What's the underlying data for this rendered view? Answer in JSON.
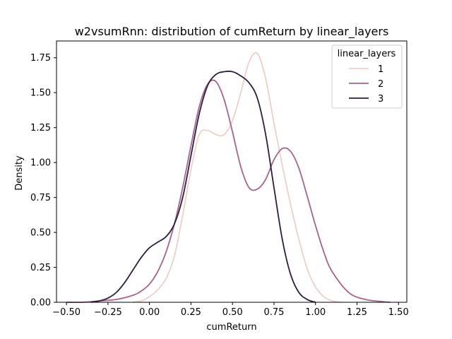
{
  "chart_data": {
    "type": "line",
    "title": "w2vsumRnn: distribution of cumReturn by linear_layers",
    "xlabel": "cumReturn",
    "ylabel": "Density",
    "xlim": [
      -0.56,
      1.55
    ],
    "ylim": [
      0,
      1.87
    ],
    "xticks": [
      "−0.50",
      "−0.25",
      "0.00",
      "0.25",
      "0.50",
      "0.75",
      "1.00",
      "1.25",
      "1.50"
    ],
    "xtick_values": [
      -0.5,
      -0.25,
      0.0,
      0.25,
      0.5,
      0.75,
      1.0,
      1.25,
      1.5
    ],
    "yticks": [
      "0.00",
      "0.25",
      "0.50",
      "0.75",
      "1.00",
      "1.25",
      "1.50",
      "1.75"
    ],
    "ytick_values": [
      0.0,
      0.25,
      0.5,
      0.75,
      1.0,
      1.25,
      1.5,
      1.75
    ],
    "grid": false,
    "legend": {
      "title": "linear_layers",
      "position": "top-right"
    },
    "series": [
      {
        "name": "1",
        "color": "#efcfc9",
        "x": [
          -0.1,
          -0.05,
          0.0,
          0.05,
          0.1,
          0.15,
          0.2,
          0.25,
          0.3,
          0.35,
          0.4,
          0.45,
          0.5,
          0.55,
          0.6,
          0.65,
          0.7,
          0.75,
          0.8,
          0.85,
          0.9,
          0.95,
          1.0,
          1.05,
          1.1,
          1.15
        ],
        "y": [
          0.0,
          0.01,
          0.04,
          0.09,
          0.17,
          0.33,
          0.62,
          0.95,
          1.2,
          1.23,
          1.2,
          1.2,
          1.3,
          1.5,
          1.72,
          1.78,
          1.6,
          1.28,
          0.98,
          0.7,
          0.45,
          0.24,
          0.11,
          0.04,
          0.01,
          0.0
        ]
      },
      {
        "name": "2",
        "color": "#a8638b",
        "x": [
          -0.5,
          -0.4,
          -0.3,
          -0.2,
          -0.1,
          -0.05,
          0.0,
          0.05,
          0.1,
          0.15,
          0.2,
          0.25,
          0.3,
          0.35,
          0.4,
          0.45,
          0.5,
          0.55,
          0.6,
          0.65,
          0.7,
          0.75,
          0.8,
          0.85,
          0.9,
          0.95,
          1.0,
          1.05,
          1.1,
          1.2,
          1.3,
          1.4,
          1.45
        ],
        "y": [
          0.0,
          0.0,
          0.01,
          0.02,
          0.05,
          0.08,
          0.13,
          0.22,
          0.36,
          0.56,
          0.82,
          1.12,
          1.4,
          1.56,
          1.58,
          1.45,
          1.22,
          0.97,
          0.82,
          0.81,
          0.88,
          1.02,
          1.1,
          1.08,
          0.96,
          0.76,
          0.55,
          0.36,
          0.22,
          0.07,
          0.02,
          0.005,
          0.0
        ]
      },
      {
        "name": "3",
        "color": "#2d1e3e",
        "x": [
          -0.35,
          -0.3,
          -0.25,
          -0.2,
          -0.15,
          -0.1,
          -0.05,
          0.0,
          0.05,
          0.1,
          0.15,
          0.2,
          0.25,
          0.3,
          0.35,
          0.4,
          0.45,
          0.5,
          0.55,
          0.6,
          0.65,
          0.7,
          0.75,
          0.8,
          0.85,
          0.9,
          0.95,
          1.0
        ],
        "y": [
          0.0,
          0.01,
          0.03,
          0.07,
          0.14,
          0.23,
          0.32,
          0.39,
          0.43,
          0.47,
          0.56,
          0.75,
          1.05,
          1.35,
          1.55,
          1.63,
          1.65,
          1.65,
          1.62,
          1.57,
          1.46,
          1.2,
          0.82,
          0.45,
          0.2,
          0.07,
          0.02,
          0.0
        ]
      }
    ]
  }
}
